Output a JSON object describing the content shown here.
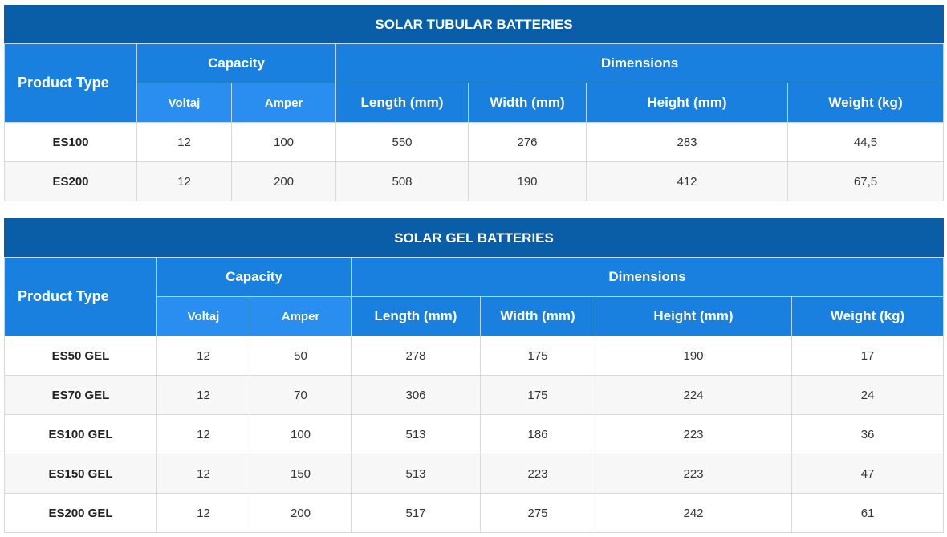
{
  "tubular": {
    "title": "SOLAR TUBULAR BATTERIES",
    "headers": {
      "product_type": "Product Type",
      "capacity": "Capacity",
      "dimensions": "Dimensions",
      "voltaj": "Voltaj",
      "amper": "Amper",
      "length": "Length (mm)",
      "width": "Width (mm)",
      "height": "Height (mm)",
      "weight": "Weight (kg)"
    },
    "rows": [
      {
        "name": "ES100",
        "voltaj": "12",
        "amper": "100",
        "length": "550",
        "width": "276",
        "height": "283",
        "weight": "44,5"
      },
      {
        "name": "ES200",
        "voltaj": "12",
        "amper": "200",
        "length": "508",
        "width": "190",
        "height": "412",
        "weight": "67,5"
      }
    ]
  },
  "gel": {
    "title": "SOLAR GEL BATTERIES",
    "headers": {
      "product_type": "Product Type",
      "capacity": "Capacity",
      "dimensions": "Dimensions",
      "voltaj": "Voltaj",
      "amper": "Amper",
      "length": "Length (mm)",
      "width": "Width (mm)",
      "height": "Height (mm)",
      "weight": "Weight (kg)"
    },
    "rows": [
      {
        "name": "ES50 GEL",
        "voltaj": "12",
        "amper": "50",
        "length": "278",
        "width": "175",
        "height": "190",
        "weight": "17"
      },
      {
        "name": "ES70 GEL",
        "voltaj": "12",
        "amper": "70",
        "length": "306",
        "width": "175",
        "height": "224",
        "weight": "24"
      },
      {
        "name": "ES100 GEL",
        "voltaj": "12",
        "amper": "100",
        "length": "513",
        "width": "186",
        "height": "223",
        "weight": "36"
      },
      {
        "name": "ES150 GEL",
        "voltaj": "12",
        "amper": "150",
        "length": "513",
        "width": "223",
        "height": "223",
        "weight": "47"
      },
      {
        "name": "ES200 GEL",
        "voltaj": "12",
        "amper": "200",
        "length": "517",
        "width": "275",
        "height": "242",
        "weight": "61"
      }
    ]
  }
}
